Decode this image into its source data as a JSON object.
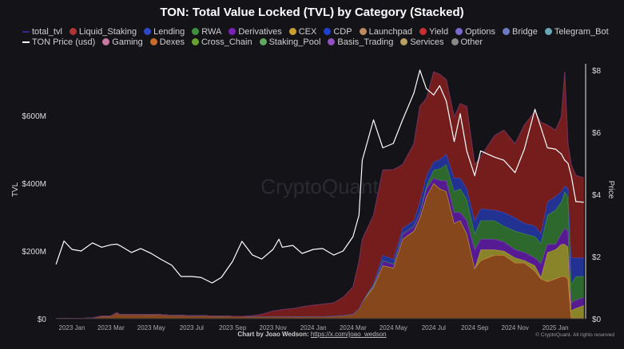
{
  "chart_data": {
    "type": "area",
    "stacked": true,
    "title": "TON: Total Value Locked (TVL) by Category (Stacked)",
    "ylabel": "TVL",
    "y2label": "Price",
    "ylim": [
      0,
      750
    ],
    "y2lim": [
      0,
      8.2
    ],
    "yticks": [
      "$0",
      "$200M",
      "$400M",
      "$600M"
    ],
    "yticks_values": [
      0,
      200,
      400,
      600
    ],
    "y2ticks": [
      "$0",
      "$2",
      "$4",
      "$6",
      "$8"
    ],
    "y2ticks_values": [
      0,
      2,
      4,
      6,
      8
    ],
    "xticks": [
      "2023 Jan",
      "2023 Mar",
      "2023 May",
      "2023 Jul",
      "2023 Sep",
      "2023 Nov",
      "2024 Jan",
      "2024 Mar",
      "2024 May",
      "2024 Jul",
      "2024 Sep",
      "2024 Nov",
      "2025 Jan"
    ],
    "xticks_values": [
      "2023-01-01",
      "2023-03-01",
      "2023-05-01",
      "2023-07-01",
      "2023-09-01",
      "2023-11-01",
      "2024-01-01",
      "2024-03-01",
      "2024-05-01",
      "2024-07-01",
      "2024-09-01",
      "2024-11-01",
      "2025-01-01"
    ],
    "grid": false,
    "legend_placement": "top",
    "watermark": "CryptoQuant",
    "legend": [
      [
        {
          "name": "total_tvl",
          "color": "#2c2c86",
          "kind": "line"
        },
        {
          "name": "Liquid_Staking",
          "color": "#b03434",
          "kind": "dot"
        },
        {
          "name": "Lending",
          "color": "#2f48c8",
          "kind": "dot"
        },
        {
          "name": "RWA",
          "color": "#3f8f3f",
          "kind": "dot"
        },
        {
          "name": "Derivatives",
          "color": "#7a22b8",
          "kind": "dot"
        },
        {
          "name": "CEX",
          "color": "#c9a030",
          "kind": "dot"
        },
        {
          "name": "CDP",
          "color": "#2040d0",
          "kind": "dot"
        },
        {
          "name": "Launchpad",
          "color": "#c08a60",
          "kind": "dot"
        },
        {
          "name": "Yield",
          "color": "#c43030",
          "kind": "dot"
        },
        {
          "name": "Options",
          "color": "#7a6ad0",
          "kind": "dot"
        },
        {
          "name": "Bridge",
          "color": "#6a7ac0",
          "kind": "dot"
        },
        {
          "name": "Telegram_Bot",
          "color": "#6aa8b8",
          "kind": "dot"
        }
      ],
      [
        {
          "name": "TON Price (usd)",
          "color": "#ffffff",
          "kind": "line"
        },
        {
          "name": "Gaming",
          "color": "#c878a0",
          "kind": "dot"
        },
        {
          "name": "Dexes",
          "color": "#c86a2a",
          "kind": "dot"
        },
        {
          "name": "Cross_Chain",
          "color": "#6aa030",
          "kind": "dot"
        },
        {
          "name": "Staking_Pool",
          "color": "#60a860",
          "kind": "dot"
        },
        {
          "name": "Basis_Trading",
          "color": "#9050c0",
          "kind": "dot"
        },
        {
          "name": "Services",
          "color": "#b8a060",
          "kind": "dot"
        },
        {
          "name": "Other",
          "color": "#888888",
          "kind": "dot"
        }
      ]
    ],
    "x": [
      "2022-12-08",
      "2022-12-20",
      "2023-01-01",
      "2023-01-15",
      "2023-02-01",
      "2023-02-15",
      "2023-03-01",
      "2023-03-10",
      "2023-03-15",
      "2023-04-01",
      "2023-04-15",
      "2023-05-01",
      "2023-05-15",
      "2023-06-01",
      "2023-06-15",
      "2023-07-01",
      "2023-07-15",
      "2023-08-01",
      "2023-08-15",
      "2023-09-01",
      "2023-09-15",
      "2023-10-01",
      "2023-10-15",
      "2023-11-01",
      "2023-11-10",
      "2023-11-15",
      "2023-12-01",
      "2023-12-15",
      "2024-01-01",
      "2024-01-15",
      "2024-02-01",
      "2024-02-15",
      "2024-03-01",
      "2024-03-10",
      "2024-03-15",
      "2024-04-01",
      "2024-04-15",
      "2024-05-01",
      "2024-05-15",
      "2024-06-01",
      "2024-06-10",
      "2024-06-20",
      "2024-07-01",
      "2024-07-10",
      "2024-07-20",
      "2024-08-01",
      "2024-08-10",
      "2024-08-20",
      "2024-09-01",
      "2024-09-10",
      "2024-10-01",
      "2024-10-15",
      "2024-11-01",
      "2024-11-15",
      "2024-12-01",
      "2024-12-10",
      "2024-12-20",
      "2025-01-01",
      "2025-01-10",
      "2025-01-15",
      "2025-01-20",
      "2025-01-25",
      "2025-02-01",
      "2025-02-13"
    ],
    "price": [
      1.75,
      2.5,
      2.23,
      2.18,
      2.44,
      2.3,
      2.38,
      2.4,
      2.35,
      2.13,
      2.26,
      2.1,
      1.92,
      1.72,
      1.36,
      1.36,
      1.33,
      1.15,
      1.33,
      1.85,
      2.49,
      2.05,
      1.92,
      2.23,
      2.56,
      2.3,
      2.36,
      2.1,
      2.23,
      2.26,
      2.05,
      2.18,
      2.64,
      3.33,
      5.1,
      6.4,
      5.5,
      5.64,
      6.4,
      7.26,
      8.0,
      7.4,
      7.2,
      7.5,
      7.0,
      5.7,
      6.6,
      5.4,
      4.6,
      5.4,
      5.2,
      5.1,
      4.7,
      5.46,
      6.74,
      6.15,
      5.5,
      5.46,
      5.3,
      5.1,
      5.0,
      4.6,
      3.77,
      3.75
    ],
    "series": [
      {
        "name": "Dexes",
        "fill": "#8c4a1c",
        "line": "#e08a4a",
        "values": [
          0.5,
          0.5,
          1,
          1,
          2,
          8,
          8,
          18,
          12,
          12,
          12,
          13,
          12,
          10,
          10,
          9,
          9,
          8,
          8,
          7,
          7,
          7,
          7,
          7,
          7,
          7,
          7,
          6,
          7,
          7,
          8,
          10,
          14,
          30,
          50,
          94,
          157,
          150,
          235,
          259,
          298,
          361,
          400,
          384,
          376,
          282,
          290,
          251,
          149,
          172,
          188,
          188,
          165,
          165,
          141,
          118,
          110,
          118,
          125,
          125,
          118,
          2,
          2,
          2
        ]
      },
      {
        "name": "CEX",
        "fill": "#8f8a2a",
        "line": "#b8b040",
        "values": [
          0,
          0,
          0,
          0,
          0,
          0,
          0,
          0,
          0,
          0,
          0,
          0,
          0,
          0,
          0,
          0,
          0,
          0,
          0,
          0,
          0,
          0,
          0,
          0,
          0,
          0,
          0,
          0,
          0,
          0,
          0,
          0,
          0,
          0,
          0,
          0,
          0,
          0,
          0,
          0,
          0,
          0,
          0,
          0,
          0,
          0,
          0,
          0,
          0,
          32,
          16,
          12,
          15,
          7,
          16,
          5,
          86,
          86,
          95,
          95,
          94,
          22,
          29,
          37
        ]
      },
      {
        "name": "Derivatives",
        "fill": "#5a1a9a",
        "line": "#8a3ad0",
        "values": [
          0,
          0,
          0,
          0,
          0,
          0,
          0,
          0,
          0,
          0,
          0,
          0,
          0,
          0,
          0,
          0,
          0,
          0,
          0,
          0,
          0,
          0,
          0,
          0,
          0,
          0,
          0,
          0,
          0,
          0,
          0,
          0,
          0,
          0,
          0,
          5,
          15,
          12,
          16,
          15,
          16,
          23,
          16,
          24,
          32,
          32,
          24,
          39,
          55,
          31,
          31,
          27,
          24,
          24,
          23,
          40,
          24,
          16,
          31,
          47,
          47,
          23,
          24,
          24
        ]
      },
      {
        "name": "RWA",
        "fill": "#2e6e2e",
        "line": "#4a9a4a",
        "values": [
          0,
          0,
          0,
          0,
          0,
          0,
          0,
          0,
          0,
          0,
          0,
          0,
          0,
          0,
          0,
          0,
          0,
          0,
          0,
          0,
          0,
          0,
          0,
          0,
          0,
          0,
          0,
          0,
          0,
          0,
          0,
          0,
          0,
          0,
          0,
          0,
          0,
          0,
          0,
          0,
          0,
          8,
          23,
          35,
          47,
          62,
          70,
          63,
          47,
          55,
          55,
          47,
          55,
          55,
          63,
          60,
          86,
          101,
          94,
          109,
          102,
          55,
          70,
          62
        ]
      },
      {
        "name": "Lending",
        "fill": "#22349a",
        "line": "#3a55d0",
        "values": [
          0,
          0,
          0,
          0,
          0,
          0,
          0,
          0,
          0,
          0,
          0,
          0,
          0,
          0,
          0,
          0,
          0,
          0,
          0,
          0,
          0,
          0,
          0,
          0,
          0,
          0,
          0,
          0,
          0,
          0,
          0,
          0,
          0,
          0,
          0,
          5,
          16,
          14,
          16,
          16,
          31,
          31,
          24,
          27,
          31,
          40,
          32,
          31,
          39,
          35,
          31,
          40,
          39,
          31,
          31,
          30,
          39,
          40,
          31,
          16,
          23,
          78,
          55,
          55
        ]
      },
      {
        "name": "Liquid_Staking",
        "fill": "#7a1e1e",
        "line": "#b03a3a",
        "values": [
          0,
          0,
          0,
          0,
          0,
          0,
          0,
          0,
          0,
          0,
          0,
          0,
          0,
          0,
          0,
          0,
          0,
          0,
          0,
          0,
          0,
          2,
          6,
          16,
          18,
          20,
          23,
          29,
          33,
          36,
          39,
          53,
          80,
          140,
          185,
          202,
          251,
          264,
          188,
          227,
          282,
          228,
          266,
          252,
          220,
          180,
          219,
          243,
          165,
          153,
          220,
          243,
          219,
          290,
          338,
          327,
          227,
          196,
          220,
          337,
          133,
          275,
          243,
          236
        ]
      }
    ]
  },
  "footer": {
    "credit_label": "Chart by Joao Wedson:",
    "credit_link": "https://x.com/joao_wedson",
    "copyright": "© CryptoQuant. All rights reserved"
  }
}
